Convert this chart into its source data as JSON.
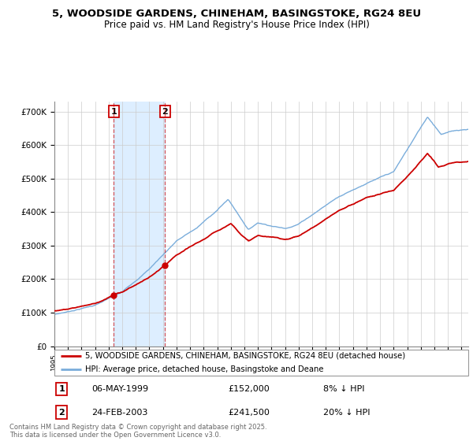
{
  "title_line1": "5, WOODSIDE GARDENS, CHINEHAM, BASINGSTOKE, RG24 8EU",
  "title_line2": "Price paid vs. HM Land Registry's House Price Index (HPI)",
  "legend_label_red": "5, WOODSIDE GARDENS, CHINEHAM, BASINGSTOKE, RG24 8EU (detached house)",
  "legend_label_blue": "HPI: Average price, detached house, Basingstoke and Deane",
  "transaction1_date": "06-MAY-1999",
  "transaction1_price": "£152,000",
  "transaction1_hpi": "8% ↓ HPI",
  "transaction2_date": "24-FEB-2003",
  "transaction2_price": "£241,500",
  "transaction2_hpi": "20% ↓ HPI",
  "footer": "Contains HM Land Registry data © Crown copyright and database right 2025.\nThis data is licensed under the Open Government Licence v3.0.",
  "ylim": [
    0,
    730000
  ],
  "yticks": [
    0,
    100000,
    200000,
    300000,
    400000,
    500000,
    600000,
    700000
  ],
  "ytick_labels": [
    "£0",
    "£100K",
    "£200K",
    "£300K",
    "£400K",
    "£500K",
    "£600K",
    "£700K"
  ],
  "red_color": "#cc0000",
  "blue_color": "#7aaddb",
  "shade_color": "#ddeeff",
  "vline1_x": 1999.37,
  "vline2_x": 2003.15,
  "marker1_y": 152000,
  "marker2_y": 241500,
  "xlim_left": 1995.0,
  "xlim_right": 2025.5
}
